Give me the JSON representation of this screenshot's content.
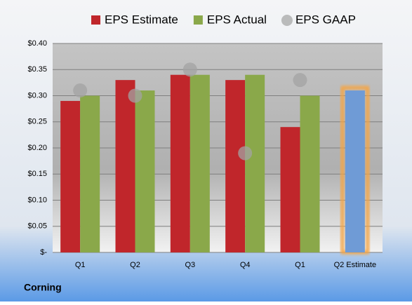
{
  "chart_data": {
    "type": "bar",
    "source": "Corning",
    "categories": [
      "Q1",
      "Q2",
      "Q3",
      "Q4",
      "Q1",
      "Q2 Estimate"
    ],
    "series": [
      {
        "name": "EPS Estimate",
        "color": "#c0262b",
        "highlight_color": "#6f9bd6",
        "values": [
          0.29,
          0.33,
          0.34,
          0.33,
          0.24,
          0.31
        ]
      },
      {
        "name": "EPS Actual",
        "color": "#8aa84a",
        "values": [
          0.3,
          0.31,
          0.34,
          0.34,
          0.3,
          null
        ]
      },
      {
        "name": "EPS GAAP",
        "color": "#a3a3a3",
        "marker": "circle",
        "values": [
          0.31,
          0.3,
          0.35,
          0.19,
          0.33,
          null
        ]
      }
    ],
    "ylim": [
      0,
      0.4
    ],
    "yticks": [
      {
        "value": 0,
        "label": "$-"
      },
      {
        "value": 0.05,
        "label": "$0.05"
      },
      {
        "value": 0.1,
        "label": "$0.10"
      },
      {
        "value": 0.15,
        "label": "$0.15"
      },
      {
        "value": 0.2,
        "label": "$0.20"
      },
      {
        "value": 0.25,
        "label": "$0.25"
      },
      {
        "value": 0.3,
        "label": "$0.30"
      },
      {
        "value": 0.35,
        "label": "$0.35"
      },
      {
        "value": 0.4,
        "label": "$0.40"
      }
    ],
    "grid": true,
    "legend": "top"
  }
}
